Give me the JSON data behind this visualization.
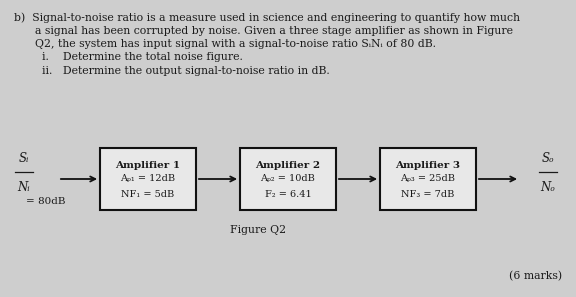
{
  "bg_color": "#cecece",
  "text_color": "#1a1a1a",
  "line1": "b)  Signal-to-noise ratio is a measure used in science and engineering to quantify how much",
  "line2": "      a signal has been corrupted by noise. Given a three stage amplifier as shown in Figure",
  "line3": "      Q2, the system has input signal with a signal-to-noise ratio SᵢNᵢ of 80 dB.",
  "bullet_i": "i.    Determine the total noise figure.",
  "bullet_ii": "ii.   Determine the output signal-to-noise ratio in dB.",
  "input_frac_top": "Sᵢ",
  "input_frac_bottom": "Nᵢ",
  "input_value": "= 80dB",
  "output_frac_top": "Sₒ",
  "output_frac_bottom": "Nₒ",
  "amp1_title": "Amplifier 1",
  "amp1_line1": "Aₚ₁ = 12dB",
  "amp1_line2": "NF₁ = 5dB",
  "amp2_title": "Amplifier 2",
  "amp2_line1": "Aₚ₂ = 10dB",
  "amp2_line2": "F₂ = 6.41",
  "amp3_title": "Amplifier 3",
  "amp3_line1": "Aₚ₃ = 25dB",
  "amp3_line2": "NF₃ = 7dB",
  "figure_label": "Figure Q2",
  "marks_label": "(6 marks)",
  "box_facecolor": "#e8e8e8",
  "box_edgecolor": "#111111"
}
